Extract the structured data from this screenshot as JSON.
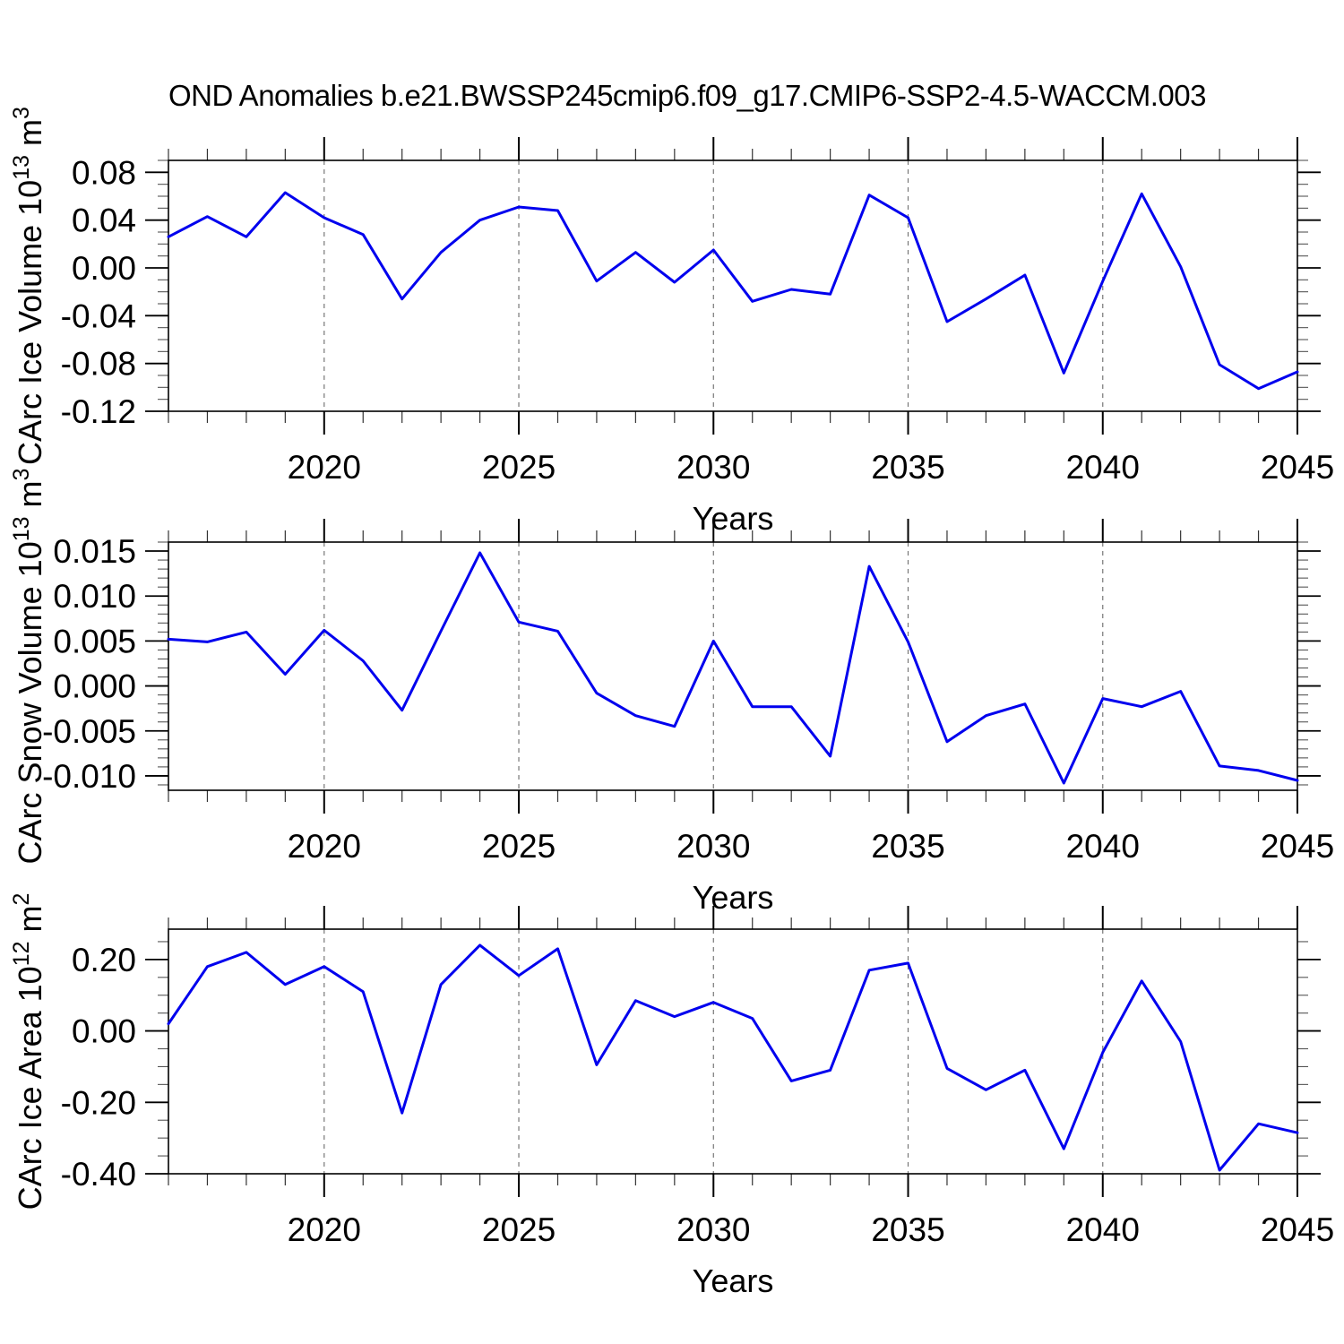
{
  "title": "OND Anomalies b.e21.BWSSP245cmip6.f09_g17.CMIP6-SSP2-4.5-WACCM.003",
  "line_color": "#0000EE",
  "grid_color": "#777777",
  "chart_data": [
    {
      "type": "line",
      "ylabel_base": "CArc Ice Volume 10",
      "ylabel_exp": "13",
      "ylabel_unit": " m",
      "ylabel_unit_exp": "3",
      "xlabel": "Years",
      "x": [
        2016,
        2017,
        2018,
        2019,
        2020,
        2021,
        2022,
        2023,
        2024,
        2025,
        2026,
        2027,
        2028,
        2029,
        2030,
        2031,
        2032,
        2033,
        2034,
        2035,
        2036,
        2037,
        2038,
        2039,
        2040,
        2041,
        2042,
        2043,
        2044,
        2045
      ],
      "values": [
        0.026,
        0.043,
        0.026,
        0.063,
        0.042,
        0.028,
        -0.026,
        0.013,
        0.04,
        0.051,
        0.048,
        -0.011,
        0.013,
        -0.012,
        0.015,
        -0.028,
        -0.018,
        -0.022,
        0.061,
        0.042,
        -0.045,
        -0.026,
        -0.006,
        -0.088,
        -0.011,
        0.062,
        0.001,
        -0.081,
        -0.101,
        -0.087
      ],
      "ylim": [
        -0.12,
        0.09
      ],
      "ytick_values": [
        0.08,
        0.04,
        0.0,
        -0.04,
        -0.08,
        -0.12
      ],
      "ytick_labels": [
        "0.08",
        "0.04",
        "0.00",
        "-0.04",
        "-0.08",
        "-0.12"
      ],
      "yminor_step": 0.01,
      "xtick_values": [
        2020,
        2025,
        2030,
        2035,
        2040,
        2045
      ],
      "xtick_labels": [
        "2020",
        "2025",
        "2030",
        "2035",
        "2040",
        "2045"
      ],
      "grid_x": [
        2020,
        2025,
        2030,
        2035,
        2040
      ],
      "grid_on": true,
      "legend": "none"
    },
    {
      "type": "line",
      "ylabel_base": "CArc Snow Volume 10",
      "ylabel_exp": "13",
      "ylabel_unit": " m",
      "ylabel_unit_exp": "3",
      "xlabel": "Years",
      "x": [
        2016,
        2017,
        2018,
        2019,
        2020,
        2021,
        2022,
        2023,
        2024,
        2025,
        2026,
        2027,
        2028,
        2029,
        2030,
        2031,
        2032,
        2033,
        2034,
        2035,
        2036,
        2037,
        2038,
        2039,
        2040,
        2041,
        2042,
        2043,
        2044,
        2045
      ],
      "values": [
        0.0052,
        0.0049,
        0.006,
        0.0013,
        0.0062,
        0.0028,
        -0.0027,
        0.0061,
        0.0148,
        0.0071,
        0.0061,
        -0.0008,
        -0.0033,
        -0.0045,
        0.005,
        -0.0023,
        -0.0023,
        -0.0078,
        0.0133,
        0.0049,
        -0.0062,
        -0.0033,
        -0.002,
        -0.0108,
        -0.0014,
        -0.0023,
        -0.0006,
        -0.0089,
        -0.0094,
        -0.0105
      ],
      "ylim": [
        -0.0116,
        0.016
      ],
      "ytick_values": [
        0.015,
        0.01,
        0.005,
        0.0,
        -0.005,
        -0.01
      ],
      "ytick_labels": [
        "0.015",
        "0.010",
        "0.005",
        "0.000",
        "-0.005",
        "-0.010"
      ],
      "yminor_step": 0.001,
      "xtick_values": [
        2020,
        2025,
        2030,
        2035,
        2040,
        2045
      ],
      "xtick_labels": [
        "2020",
        "2025",
        "2030",
        "2035",
        "2040",
        "2045"
      ],
      "grid_x": [
        2020,
        2025,
        2030,
        2035,
        2040
      ],
      "grid_on": true,
      "legend": "none"
    },
    {
      "type": "line",
      "ylabel_base": "CArc Ice Area 10",
      "ylabel_exp": "12",
      "ylabel_unit": " m",
      "ylabel_unit_exp": "2",
      "xlabel": "Years",
      "x": [
        2016,
        2017,
        2018,
        2019,
        2020,
        2021,
        2022,
        2023,
        2024,
        2025,
        2026,
        2027,
        2028,
        2029,
        2030,
        2031,
        2032,
        2033,
        2034,
        2035,
        2036,
        2037,
        2038,
        2039,
        2040,
        2041,
        2042,
        2043,
        2044,
        2045
      ],
      "values": [
        0.02,
        0.18,
        0.22,
        0.13,
        0.18,
        0.11,
        -0.23,
        0.13,
        0.24,
        0.155,
        0.23,
        -0.095,
        0.085,
        0.04,
        0.08,
        0.035,
        -0.14,
        -0.11,
        0.17,
        0.19,
        -0.105,
        -0.165,
        -0.11,
        -0.33,
        -0.06,
        0.14,
        -0.03,
        -0.39,
        -0.26,
        -0.285
      ],
      "ylim": [
        -0.4,
        0.285
      ],
      "ytick_values": [
        0.2,
        0.0,
        -0.2,
        -0.4
      ],
      "ytick_labels": [
        "0.20",
        "0.00",
        "-0.20",
        "-0.40"
      ],
      "yminor_step": 0.05,
      "xtick_values": [
        2020,
        2025,
        2030,
        2035,
        2040,
        2045
      ],
      "xtick_labels": [
        "2020",
        "2025",
        "2030",
        "2035",
        "2040",
        "2045"
      ],
      "grid_x": [
        2020,
        2025,
        2030,
        2035,
        2040
      ],
      "grid_on": true,
      "legend": "none"
    }
  ]
}
